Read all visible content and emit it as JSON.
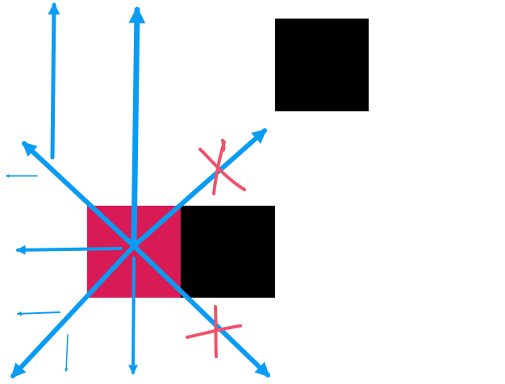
{
  "colors": {
    "background": "#ffffff",
    "pink_square": "#d81b55",
    "black_square": "#000000",
    "arrows": "#0a9cf5",
    "cross_marks": "#f0526a"
  },
  "elements": {
    "pink_square": {
      "icon": "square",
      "color_key": "pink_square"
    },
    "black_square_adjacent": {
      "icon": "square",
      "color_key": "black_square"
    },
    "black_square_diagonal": {
      "icon": "square",
      "color_key": "black_square"
    },
    "arrows_count": 11,
    "blocked_directions": [
      "up-right",
      "down-right"
    ],
    "cross_marks_icon": "x-mark"
  }
}
